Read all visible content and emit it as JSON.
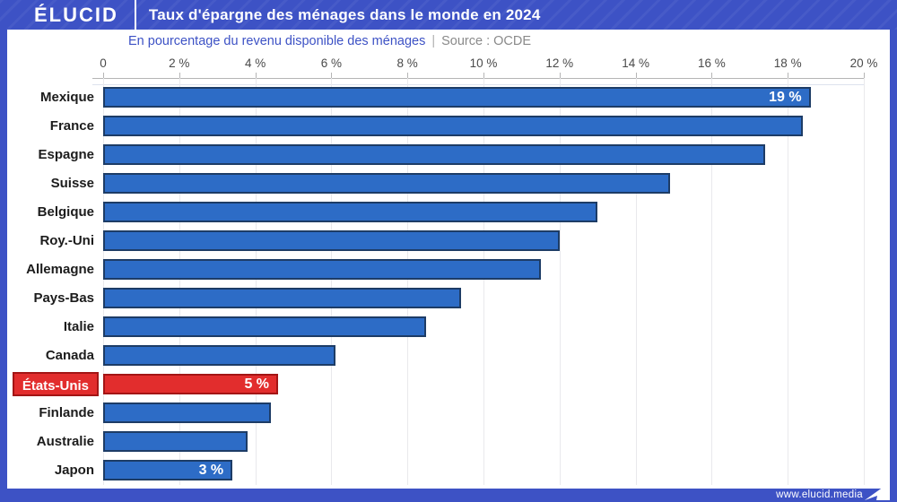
{
  "brand": {
    "logo_text": "ÉLUCID",
    "footer_url": "www.elucid.media"
  },
  "header": {
    "title": "Taux d'épargne des ménages dans le monde en 2024"
  },
  "subtitle": {
    "description": "En pourcentage du revenu disponible des ménages",
    "divider": "|",
    "source": "Source : OCDE"
  },
  "colors": {
    "frame_blue": "#3d52c5",
    "bar_blue": "#2d6cc6",
    "bar_border": "#1d3c66",
    "highlight_red": "#e22d2d",
    "highlight_border": "#a31515",
    "grid": "#e9e9ec",
    "axis": "#b5b5b5"
  },
  "chart_data": {
    "type": "bar",
    "orientation": "horizontal",
    "title": "Taux d'épargne des ménages dans le monde en 2024",
    "subtitle": "En pourcentage du revenu disponible des ménages",
    "source": "Source : OCDE",
    "xlabel": "",
    "ylabel": "",
    "xlim": [
      0,
      20
    ],
    "grid": true,
    "tick_values": [
      0,
      2,
      4,
      6,
      8,
      10,
      12,
      14,
      16,
      18,
      20
    ],
    "tick_labels": [
      "0",
      "2 %",
      "4 %",
      "6 %",
      "8 %",
      "10 %",
      "12 %",
      "14 %",
      "16 %",
      "18 %",
      "20 %"
    ],
    "categories": [
      "Mexique",
      "France",
      "Espagne",
      "Suisse",
      "Belgique",
      "Roy.-Uni",
      "Allemagne",
      "Pays-Bas",
      "Italie",
      "Canada",
      "États-Unis",
      "Finlande",
      "Australie",
      "Japon"
    ],
    "values": [
      18.6,
      18.4,
      17.4,
      14.9,
      13.0,
      12.0,
      11.5,
      9.4,
      8.5,
      6.1,
      4.6,
      4.4,
      3.8,
      3.4
    ],
    "bar_labels": [
      "19 %",
      "",
      "",
      "",
      "",
      "",
      "",
      "",
      "",
      "",
      "5 %",
      "",
      "",
      "3 %"
    ],
    "highlight_index": 10
  }
}
